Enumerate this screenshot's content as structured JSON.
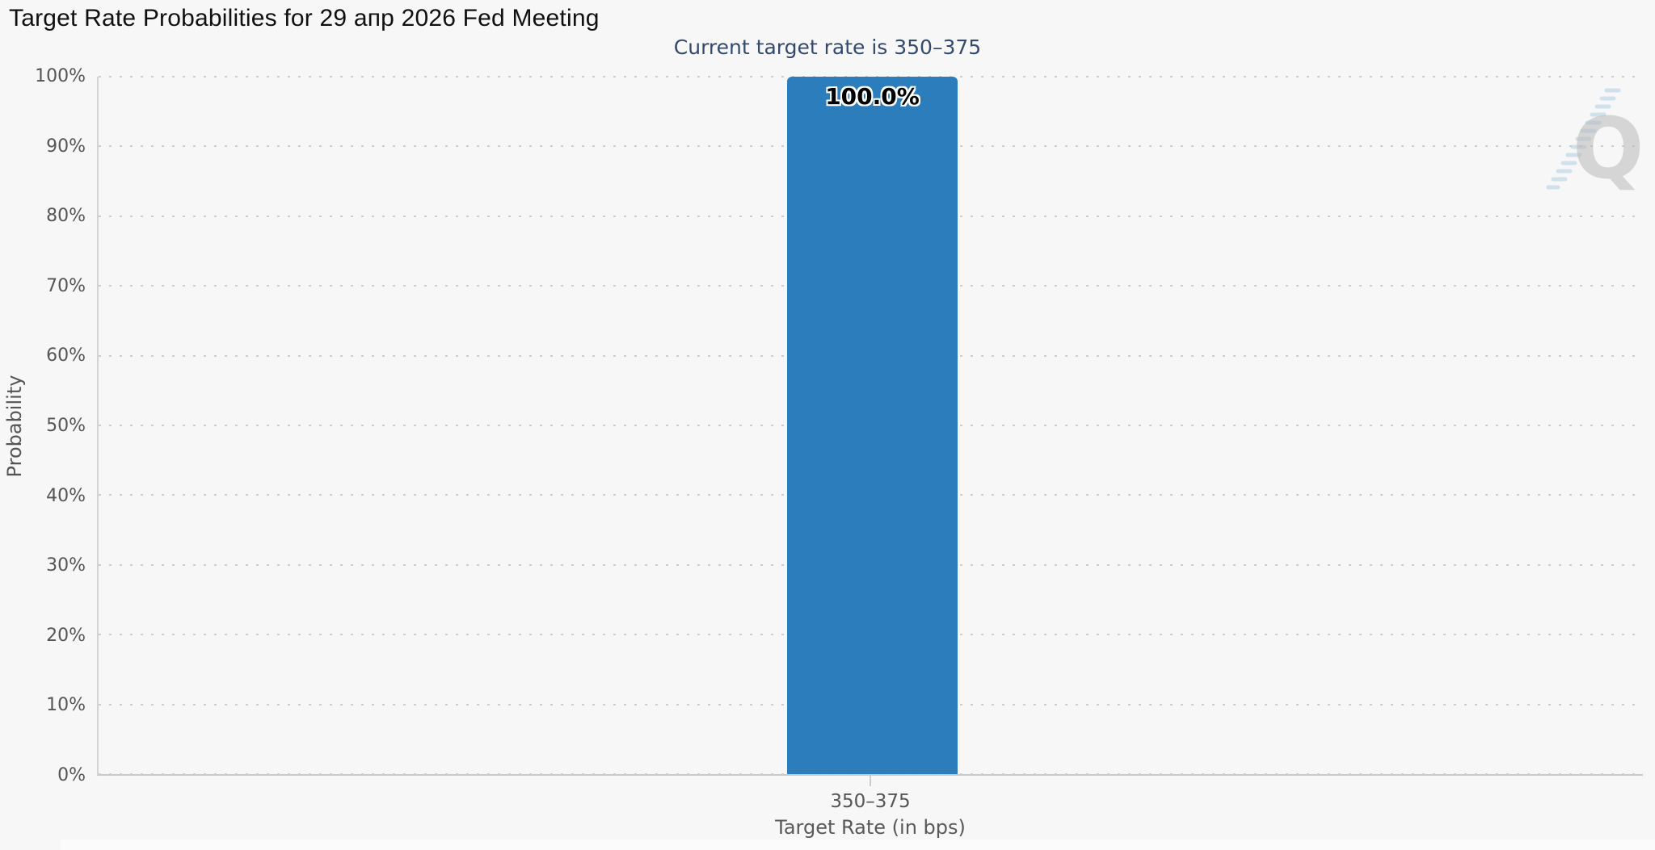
{
  "chart_data": {
    "type": "bar",
    "title": "Target Rate Probabilities for 29 апр 2026 Fed Meeting",
    "subtitle": "Current target rate is 350–375",
    "categories": [
      "350–375"
    ],
    "values": [
      100.0
    ],
    "bar_labels": [
      "100.0%"
    ],
    "xlabel": "Target Rate (in bps)",
    "ylabel": "Probability",
    "ylim": [
      0,
      100
    ],
    "ytick_step": 10,
    "ytick_labels": [
      "0%",
      "10%",
      "20%",
      "30%",
      "40%",
      "50%",
      "60%",
      "70%",
      "80%",
      "90%",
      "100%"
    ],
    "grid": "horizontal-dotted",
    "legend": "none",
    "bar_color": "#2b7dbb"
  },
  "icons": {
    "menu": "hamburger-menu-icon",
    "watermark_letter": "Q"
  },
  "colors": {
    "bar": "#2b7dbb",
    "subtitle": "#33496d",
    "background": "#f7f7f7",
    "watermark_dashes": "#aed2e4"
  }
}
